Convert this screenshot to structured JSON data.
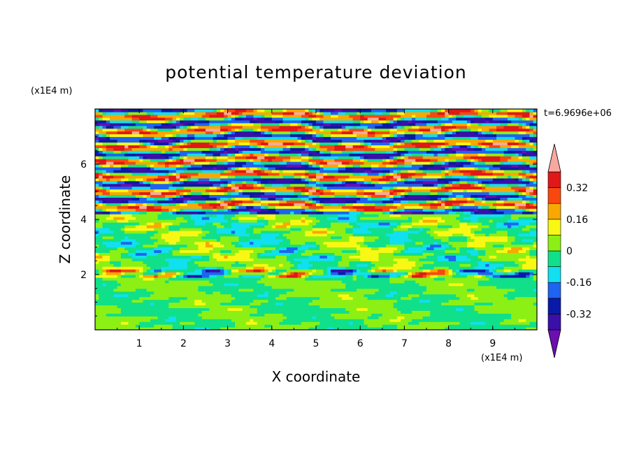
{
  "chart_data": {
    "type": "heatmap",
    "title": "potential temperature deviation",
    "xlabel": "X coordinate",
    "ylabel": "Z coordinate",
    "x_unit": "(x1E4 m)",
    "y_unit": "(x1E4 m)",
    "time_label": "t=6.9696e+06",
    "xlim": [
      0,
      10
    ],
    "ylim": [
      0,
      8
    ],
    "x_ticks": [
      "1",
      "2",
      "3",
      "4",
      "5",
      "6",
      "7",
      "8",
      "9"
    ],
    "y_ticks": [
      "2",
      "4",
      "6"
    ],
    "colorbar": {
      "levels": [
        -0.4,
        -0.32,
        -0.24,
        -0.16,
        -0.08,
        0,
        0.08,
        0.16,
        0.24,
        0.32,
        0.4
      ],
      "labels": [
        "0.32",
        "0.16",
        "0",
        "-0.16",
        "-0.32"
      ],
      "label_values": [
        0.32,
        0.16,
        0,
        -0.16,
        -0.32
      ],
      "colors": [
        "#6a0fb0",
        "#3a10a8",
        "#0a1aa8",
        "#1e64f0",
        "#10e0f0",
        "#10e08a",
        "#8cf014",
        "#f8f814",
        "#f8a800",
        "#f84810",
        "#e01818",
        "#f8a8a0"
      ],
      "extend": "both"
    },
    "bands": [
      {
        "z_range": [
          0,
          1.9
        ],
        "pattern": "green and yellow-green cells",
        "value_range": [
          -0.08,
          0.08
        ]
      },
      {
        "z_range": [
          1.9,
          2.2
        ],
        "pattern": "thin mixed layer, blue through red",
        "value_range": [
          -0.32,
          0.32
        ]
      },
      {
        "z_range": [
          2.2,
          4.2
        ],
        "pattern": "cyan, green and yellow streaks",
        "value_range": [
          -0.16,
          0.16
        ]
      },
      {
        "z_range": [
          4.2,
          6.3
        ],
        "pattern": "layered streaks from blue to pink",
        "value_range": [
          -0.4,
          0.4
        ]
      },
      {
        "z_range": [
          6.3,
          8
        ],
        "pattern": "alternating purple and pink layers",
        "value_range": [
          -0.4,
          0.4
        ]
      }
    ]
  }
}
